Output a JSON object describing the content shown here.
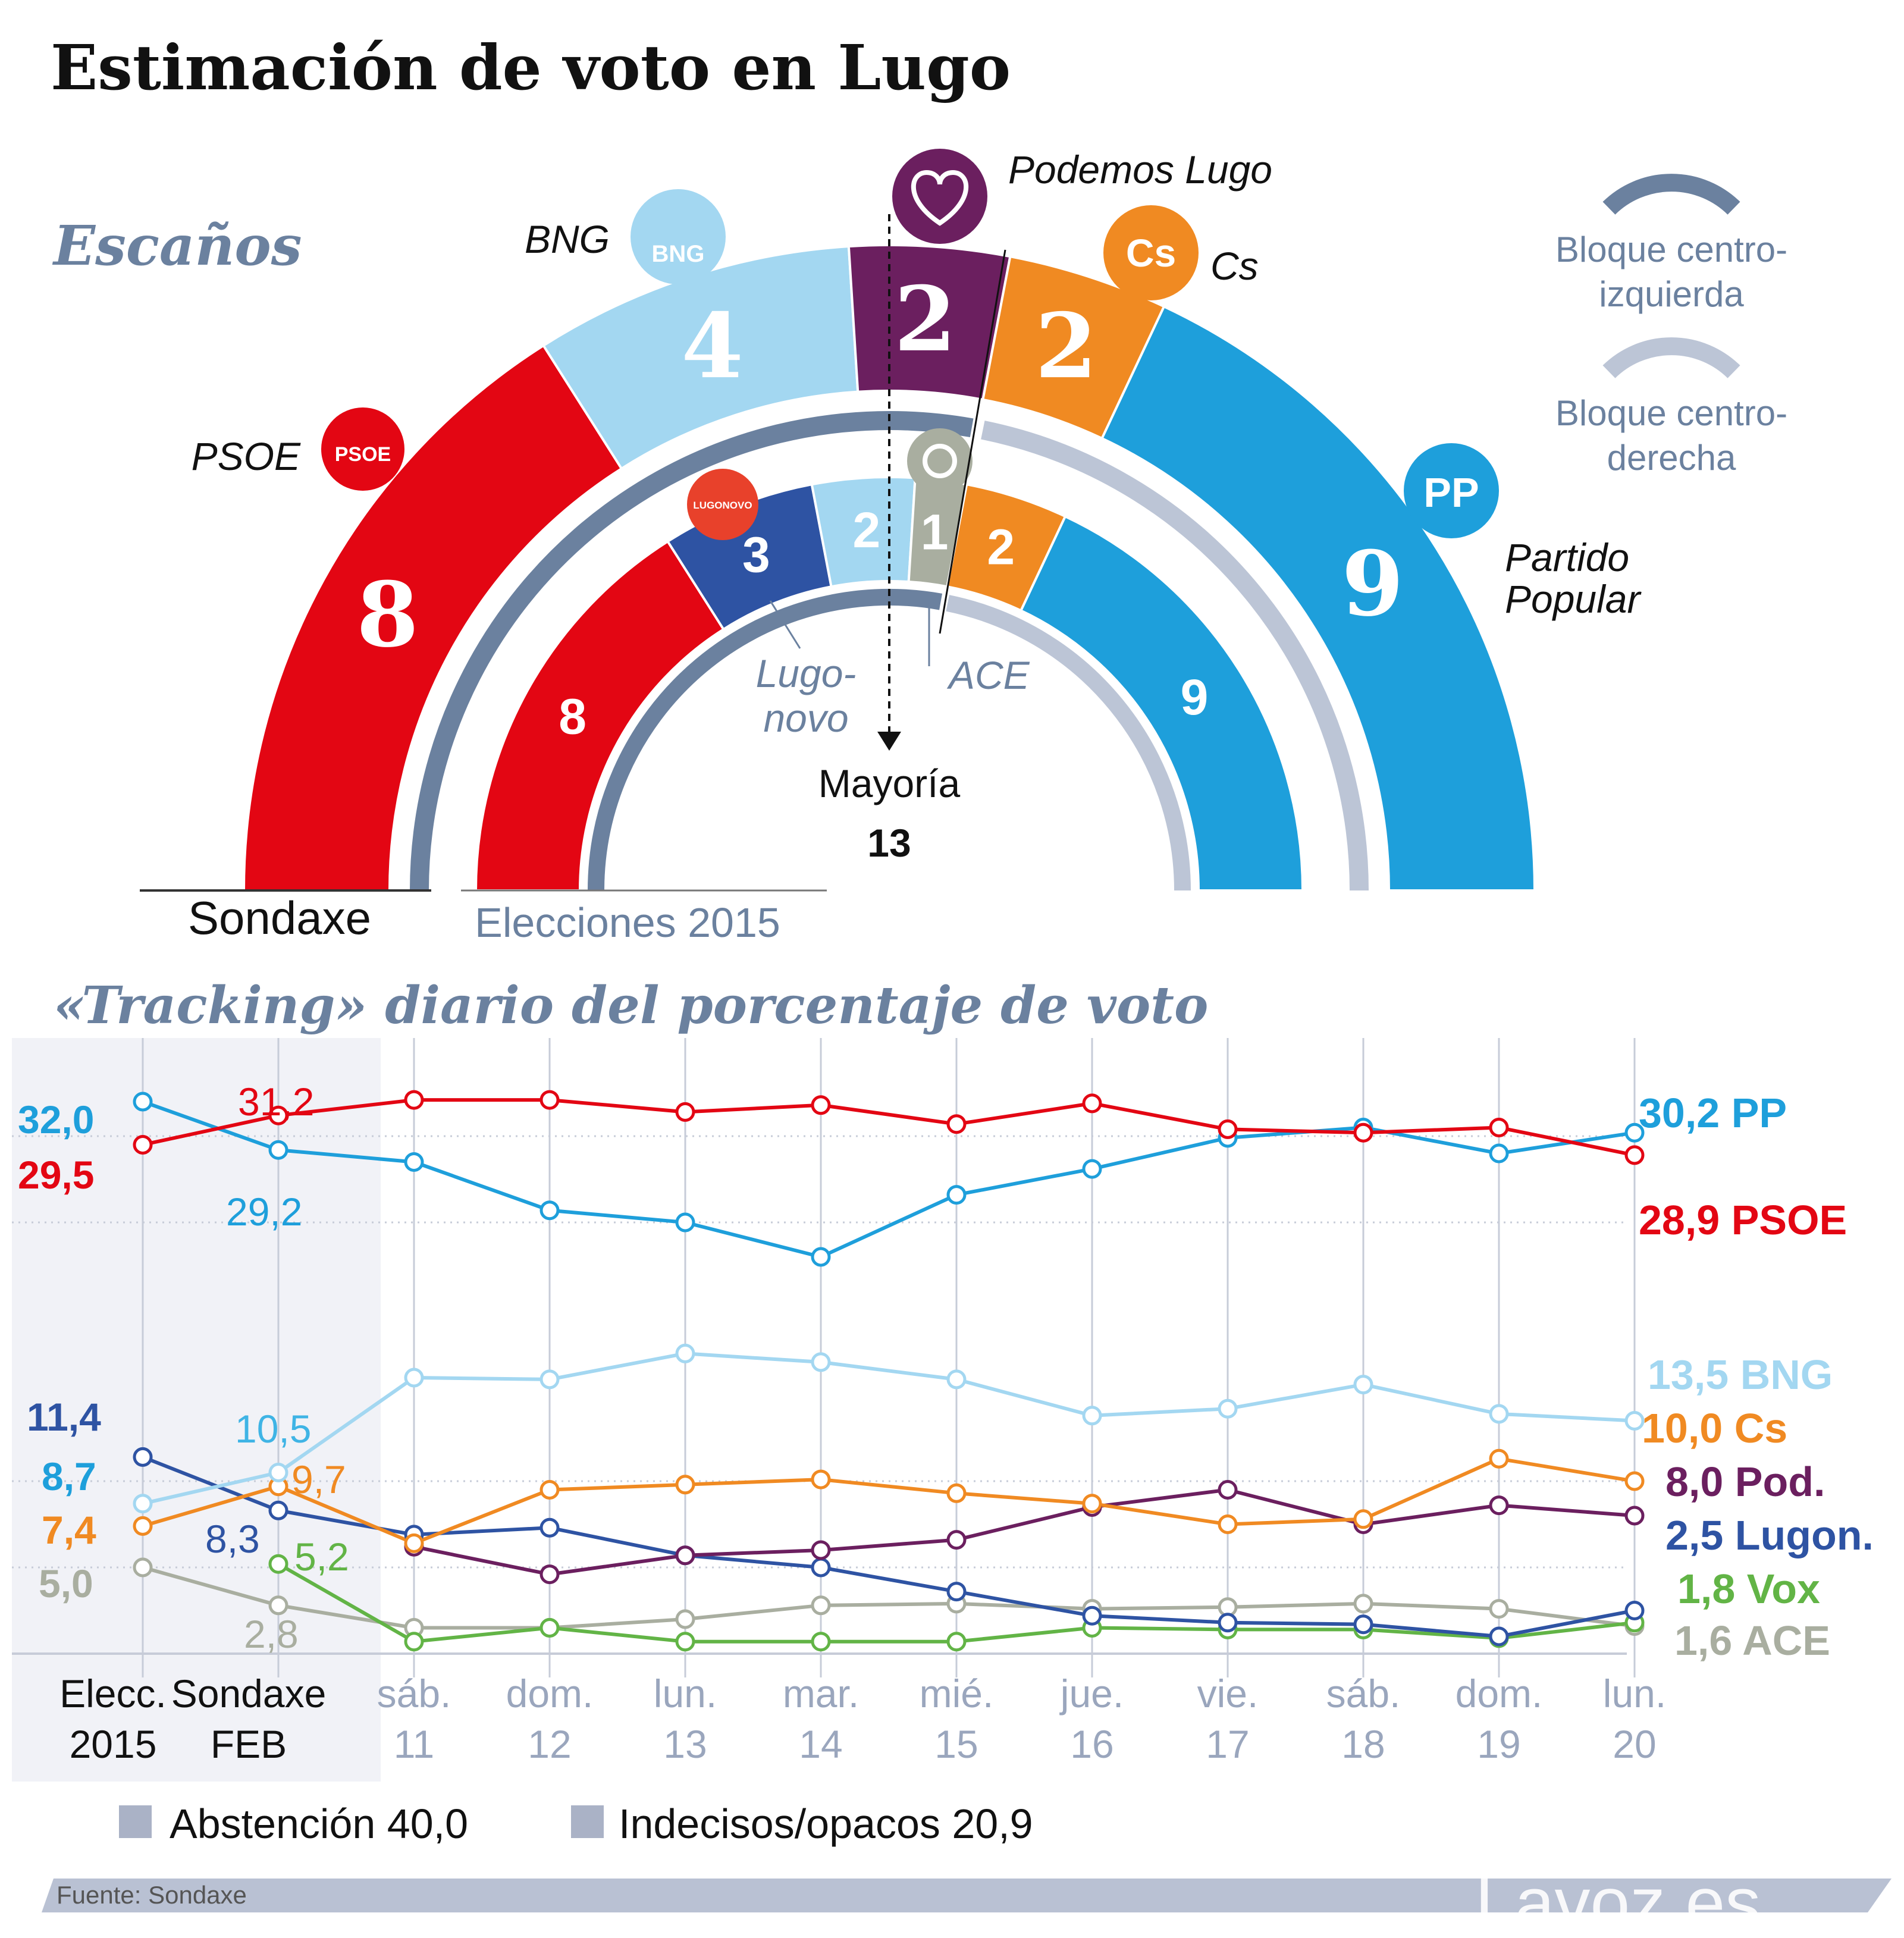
{
  "header": {
    "title": "Estimación de voto en Lugo"
  },
  "seats": {
    "section_title": "Escaños",
    "outer_label": "Sondaxe",
    "inner_label": "Elecciones 2015",
    "majority_label": "Mayoría",
    "majority_value": "13",
    "legend": {
      "left_bloc": [
        "Bloque centro-",
        "izquierda"
      ],
      "right_bloc": [
        "Bloque centro-",
        "derecha"
      ],
      "left_bloc_color": "#6b819f",
      "right_bloc_color": "#bcc5d6"
    },
    "parties": {
      "psoe": {
        "label": "PSOE",
        "color": "#e30613"
      },
      "bng": {
        "label": "BNG",
        "color": "#a3d7f1"
      },
      "podemos": {
        "label": "Podemos Lugo",
        "color": "#6b1f5f"
      },
      "cs": {
        "label": "Cs",
        "color": "#f08a22"
      },
      "pp": {
        "label": [
          "Partido",
          "Popular"
        ],
        "color": "#1e9fdb"
      },
      "lugonovo": {
        "label": [
          "Lugo-",
          "novo"
        ],
        "color": "#2e53a3"
      },
      "ace": {
        "label": "ACE",
        "color": "#a9aea0"
      }
    },
    "outer": [
      {
        "party": "psoe",
        "seats": "8"
      },
      {
        "party": "bng",
        "seats": "4"
      },
      {
        "party": "podemos",
        "seats": "2"
      },
      {
        "party": "cs",
        "seats": "2"
      },
      {
        "party": "pp",
        "seats": "9"
      }
    ],
    "inner": [
      {
        "party": "psoe",
        "seats": "8"
      },
      {
        "party": "lugonovo",
        "seats": "3"
      },
      {
        "party": "bng",
        "seats": "2"
      },
      {
        "party": "ace",
        "seats": "1"
      },
      {
        "party": "cs",
        "seats": "2"
      },
      {
        "party": "pp",
        "seats": "9"
      }
    ],
    "logos": {
      "psoe": "PSOE",
      "bng": "BNG",
      "cs": "Cs",
      "pp": "PP",
      "lugonovo": "LUGONOVO"
    }
  },
  "tracking": {
    "section_title": "«Tracking» diario del porcentaje de voto",
    "end_labels": {
      "pp": "30,2 PP",
      "psoe": "28,9 PSOE",
      "bng": "13,5 BNG",
      "cs": "10,0 Cs",
      "pod": "8,0 Pod.",
      "lugon": "2,5 Lugon.",
      "vox": "1,8 Vox",
      "ace": "1,6 ACE"
    },
    "start_labels": {
      "pp": "32,0",
      "psoe": "29,5",
      "lugon": "11,4",
      "bng": "8,7",
      "cs": "7,4",
      "ace": "5,0"
    },
    "feb_labels": {
      "psoe": "31,2",
      "pp": "29,2",
      "bng": "10,5",
      "cs": "9,7",
      "lugon": "8,3",
      "vox": "5,2",
      "ace": "2,8"
    }
  },
  "chart_data": {
    "type": "line",
    "x": [
      [
        "Elecc.",
        "2015"
      ],
      [
        "Sondaxe",
        "FEB"
      ],
      [
        "sáb.",
        "11"
      ],
      [
        "dom.",
        "12"
      ],
      [
        "lun.",
        "13"
      ],
      [
        "mar.",
        "14"
      ],
      [
        "mié.",
        "15"
      ],
      [
        "jue.",
        "16"
      ],
      [
        "vie.",
        "17"
      ],
      [
        "sáb.",
        "18"
      ],
      [
        "dom.",
        "19"
      ],
      [
        "lun.",
        "20"
      ]
    ],
    "ylim": [
      0,
      35
    ],
    "series": [
      {
        "key": "psoe",
        "name": "PSOE",
        "color": "#e30613",
        "values": [
          29.5,
          31.2,
          32.1,
          32.1,
          31.4,
          31.8,
          30.7,
          31.9,
          30.4,
          30.2,
          30.5,
          28.9
        ]
      },
      {
        "key": "pp",
        "name": "PP",
        "color": "#1e9fdb",
        "values": [
          32.0,
          29.2,
          28.5,
          25.7,
          25.0,
          23.0,
          26.6,
          28.1,
          29.9,
          30.5,
          29.0,
          30.2
        ]
      },
      {
        "key": "bng",
        "name": "BNG",
        "color": "#a3d7f1",
        "values": [
          8.7,
          10.5,
          16.0,
          15.9,
          17.4,
          16.9,
          15.9,
          13.8,
          14.2,
          15.6,
          13.9,
          13.5
        ]
      },
      {
        "key": "cs",
        "name": "Cs",
        "color": "#f08a22",
        "values": [
          7.4,
          9.7,
          6.4,
          9.5,
          9.8,
          10.1,
          9.3,
          8.7,
          7.5,
          7.8,
          11.3,
          10.0
        ]
      },
      {
        "key": "pod",
        "name": "Pod.",
        "color": "#6b1f5f",
        "values": null
      },
      {
        "key": "lugon",
        "name": "Lugon.",
        "color": "#2e53a3",
        "values": [
          11.4,
          8.3,
          6.9,
          7.3,
          5.7,
          5.0,
          3.6,
          2.2,
          1.8,
          1.7,
          1.0,
          2.5
        ]
      },
      {
        "key": "vox",
        "name": "Vox",
        "color": "#62b446",
        "values": [
          null,
          5.2,
          0.7,
          1.5,
          0.7,
          0.7,
          0.7,
          1.5,
          1.4,
          1.4,
          0.9,
          1.8
        ]
      },
      {
        "key": "ace",
        "name": "ACE",
        "color": "#a9aea0",
        "values": [
          5.0,
          2.8,
          1.5,
          1.5,
          2.0,
          2.8,
          2.9,
          2.6,
          2.7,
          2.9,
          2.6,
          1.6
        ]
      }
    ],
    "pod_values": [
      null,
      null,
      6.2,
      4.6,
      5.7,
      6.0,
      6.6,
      8.5,
      9.5,
      7.5,
      8.6,
      8.0
    ]
  },
  "footer": {
    "legend": [
      {
        "label": "Abstención",
        "value": "40,0",
        "color": "#aab2c6"
      },
      {
        "label": "Indecisos/opacos",
        "value": "20,9",
        "color": "#aab2c6"
      }
    ],
    "source": "Fuente: Sondaxe",
    "brand": "Lavoz.es"
  }
}
